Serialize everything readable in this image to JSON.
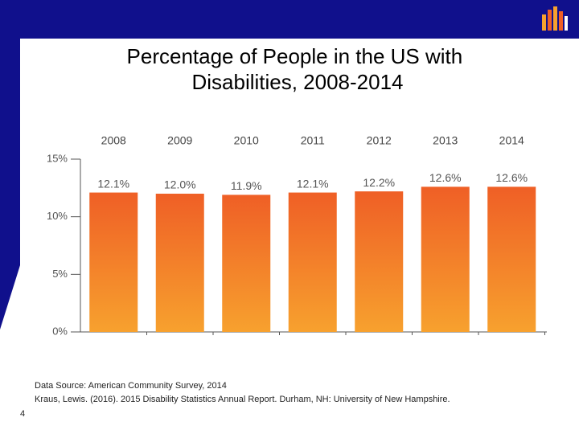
{
  "chart_data": {
    "type": "bar",
    "title": "Percentage of People in the US with Disabilities, 2008-2014",
    "categories": [
      "2008",
      "2009",
      "2010",
      "2011",
      "2012",
      "2013",
      "2014"
    ],
    "values": [
      12.1,
      12.0,
      11.9,
      12.1,
      12.2,
      12.6,
      12.6
    ],
    "value_labels": [
      "12.1%",
      "12.0%",
      "11.9%",
      "12.1%",
      "12.2%",
      "12.6%",
      "12.6%"
    ],
    "ylim": [
      0,
      15
    ],
    "yticks": [
      {
        "value": 0,
        "label": "0%"
      },
      {
        "value": 5,
        "label": "5%"
      },
      {
        "value": 10,
        "label": "10%"
      },
      {
        "value": 15,
        "label": "15%"
      }
    ],
    "grid": false
  },
  "notes": [
    "Data Source: American Community Survey, 2014",
    "Kraus, Lewis. (2016). 2015 Disability Statistics Annual Report. Durham, NH: University of New Hampshire."
  ],
  "slide_number": "4"
}
